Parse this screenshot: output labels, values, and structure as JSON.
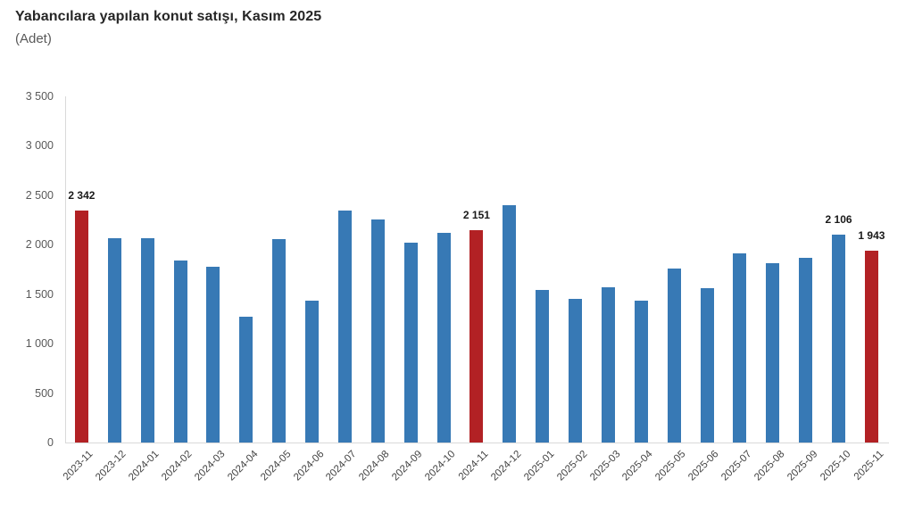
{
  "title": "Yabancılara yapılan konut satışı, Kasım 2025",
  "subtitle": "(Adet)",
  "colors": {
    "bar_blue": "#3779b5",
    "bar_red": "#b22124",
    "axis_line": "#d9d9d9",
    "y_tick_label": "#595959",
    "x_tick_label": "#444444",
    "value_label": "#1a1a1a",
    "title_color": "#262626"
  },
  "chart_data": {
    "type": "bar",
    "title": "Yabancılara yapılan konut satışı, Kasım 2025",
    "subtitle": "(Adet)",
    "categories": [
      "2023-11",
      "2023-12",
      "2024-01",
      "2024-02",
      "2024-03",
      "2024-04",
      "2024-05",
      "2024-06",
      "2024-07",
      "2024-08",
      "2024-09",
      "2024-10",
      "2024-11",
      "2024-12",
      "2025-01",
      "2025-02",
      "2025-03",
      "2025-04",
      "2025-05",
      "2025-06",
      "2025-07",
      "2025-08",
      "2025-09",
      "2025-10",
      "2025-11"
    ],
    "values": [
      2342,
      2062,
      2064,
      1838,
      1777,
      1273,
      2060,
      1437,
      2349,
      2255,
      2022,
      2121,
      2151,
      2401,
      1541,
      1449,
      1570,
      1434,
      1762,
      1563,
      1911,
      1809,
      1864,
      2106,
      1943
    ],
    "highlighted_categories": [
      "2023-11",
      "2024-11",
      "2025-11"
    ],
    "value_labels": {
      "2023-11": "2 342",
      "2024-11": "2 151",
      "2025-10": "2 106",
      "2025-11": "1 943"
    },
    "ylim": [
      0,
      3500
    ],
    "ytick_values": [
      0,
      500,
      1000,
      1500,
      2000,
      2500,
      3000,
      3500
    ],
    "ytick_labels": [
      "0",
      "500",
      "1 000",
      "1 500",
      "2 000",
      "2 500",
      "3 000",
      "3 500"
    ],
    "grid": false,
    "legend": false,
    "bar_orientation": "vertical"
  }
}
